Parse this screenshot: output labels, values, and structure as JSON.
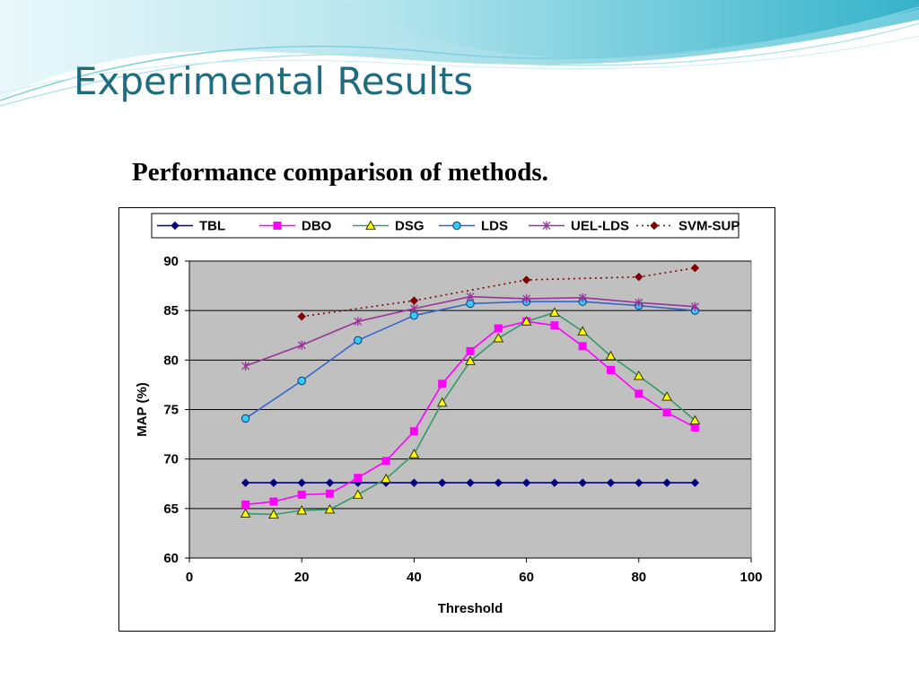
{
  "slide": {
    "title": "Experimental Results",
    "subtitle": "Performance comparison of methods."
  },
  "colors": {
    "title": "#1f6b80",
    "plot_background": "#c0c0c0",
    "wave_dark": "#55c3d6",
    "wave_light": "#bfe9f0"
  },
  "chart_data": {
    "type": "line",
    "title": "",
    "xlabel": "Threshold",
    "ylabel": "MAP (%)",
    "xlim": [
      0,
      100
    ],
    "ylim": [
      60,
      90
    ],
    "xticks": [
      0,
      20,
      40,
      60,
      80,
      100
    ],
    "yticks": [
      60,
      65,
      70,
      75,
      80,
      85,
      90
    ],
    "grid": "horizontal",
    "legend_position": "top",
    "series": [
      {
        "name": "TBL",
        "color": "#000080",
        "marker": "diamond",
        "line": "solid",
        "x": [
          10,
          15,
          20,
          25,
          30,
          35,
          40,
          45,
          50,
          55,
          60,
          65,
          70,
          75,
          80,
          85,
          90
        ],
        "y": [
          67.6,
          67.6,
          67.6,
          67.6,
          67.6,
          67.6,
          67.6,
          67.6,
          67.6,
          67.6,
          67.6,
          67.6,
          67.6,
          67.6,
          67.6,
          67.6,
          67.6
        ]
      },
      {
        "name": "DBO",
        "color": "#ff00ff",
        "marker": "square",
        "line": "solid",
        "x": [
          10,
          15,
          20,
          25,
          30,
          35,
          40,
          45,
          50,
          55,
          60,
          65,
          70,
          75,
          80,
          85,
          90
        ],
        "y": [
          65.4,
          65.7,
          66.4,
          66.5,
          68.1,
          69.8,
          72.8,
          77.6,
          80.9,
          83.2,
          83.9,
          83.5,
          81.4,
          79.0,
          76.6,
          74.7,
          73.2
        ]
      },
      {
        "name": "DSG",
        "color": "#339966",
        "marker": "triangle",
        "line": "solid",
        "x": [
          10,
          15,
          20,
          25,
          30,
          35,
          40,
          45,
          50,
          55,
          60,
          65,
          70,
          75,
          80,
          85,
          90
        ],
        "y": [
          64.5,
          64.4,
          64.8,
          64.9,
          66.4,
          68.0,
          70.5,
          75.7,
          79.9,
          82.2,
          83.9,
          84.8,
          82.9,
          80.4,
          78.4,
          76.3,
          73.9
        ]
      },
      {
        "name": "LDS",
        "color": "#3366cc",
        "marker": "circle",
        "line": "solid",
        "x": [
          10,
          20,
          30,
          40,
          50,
          60,
          70,
          80,
          90
        ],
        "y": [
          74.1,
          77.9,
          82.0,
          84.5,
          85.7,
          85.9,
          85.9,
          85.5,
          85.0
        ]
      },
      {
        "name": "UEL-LDS",
        "color": "#993399",
        "marker": "star",
        "line": "solid",
        "x": [
          10,
          20,
          30,
          40,
          50,
          60,
          70,
          80,
          90
        ],
        "y": [
          79.4,
          81.5,
          83.9,
          85.2,
          86.4,
          86.2,
          86.3,
          85.8,
          85.4
        ]
      },
      {
        "name": "SVM-SUP",
        "color": "#800000",
        "marker": "diamond",
        "line": "dotted",
        "x": [
          20,
          40,
          60,
          80,
          90
        ],
        "y": [
          84.4,
          86.0,
          88.1,
          88.4,
          89.3
        ]
      }
    ]
  }
}
